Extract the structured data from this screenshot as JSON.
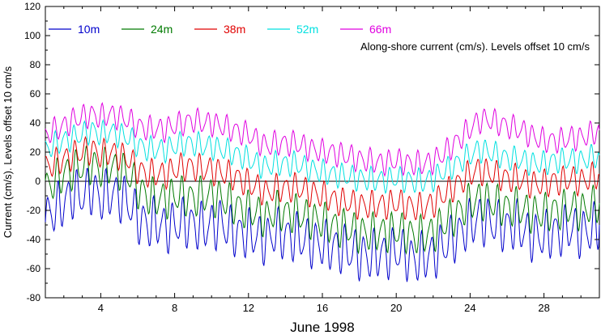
{
  "chart_data": {
    "type": "line",
    "title": "",
    "xlabel": "June 1998",
    "ylabel": "Current (cm/s). Levels offset 10 cm/s",
    "annotation": "Along-shore current (cm/s). Levels offset 10 cm/s",
    "xlim": [
      1,
      31
    ],
    "ylim": [
      -80,
      120
    ],
    "x_ticks": [
      4,
      8,
      12,
      16,
      20,
      24,
      28
    ],
    "y_ticks": [
      -80,
      -60,
      -40,
      -20,
      0,
      20,
      40,
      60,
      80,
      100,
      120
    ],
    "grid": false,
    "zero_line": true,
    "legend_position": "top",
    "series": [
      {
        "name": "10m",
        "color": "#0000cc",
        "x": [
          1.0,
          1.5,
          2.0,
          2.5,
          3.0,
          3.5,
          4.0,
          4.5,
          5.0,
          5.5,
          6.0,
          6.5,
          7.0,
          7.5,
          8.0,
          8.5,
          9.0,
          9.5,
          10.0,
          10.5,
          11.0,
          11.5,
          12.0,
          12.5,
          13.0,
          13.5,
          14.0,
          14.5,
          15.0,
          15.5,
          16.0,
          16.5,
          17.0,
          17.5,
          18.0,
          18.5,
          19.0,
          19.5,
          20.0,
          20.5,
          21.0,
          21.5,
          22.0,
          22.5,
          23.0,
          23.5,
          24.0,
          24.5,
          25.0,
          25.5,
          26.0,
          26.5,
          27.0,
          27.5,
          28.0,
          28.5,
          29.0,
          29.5,
          30.0,
          30.5,
          31.0
        ],
        "values": [
          -25,
          -20,
          -15,
          -8,
          -10,
          -5,
          -12,
          -8,
          -10,
          -15,
          -25,
          -30,
          -28,
          -32,
          -30,
          -28,
          -30,
          -32,
          -30,
          -28,
          -34,
          -36,
          -36,
          -38,
          -40,
          -35,
          -38,
          -38,
          -40,
          -42,
          -44,
          -45,
          -46,
          -48,
          -50,
          -52,
          -50,
          -50,
          -48,
          -50,
          -54,
          -52,
          -50,
          -45,
          -40,
          -35,
          -30,
          -25,
          -28,
          -30,
          -32,
          -30,
          -35,
          -38,
          -38,
          -35,
          -35,
          -32,
          -35,
          -34,
          -30
        ]
      },
      {
        "name": "24m",
        "color": "#007a00",
        "x": [
          1.0,
          1.5,
          2.0,
          2.5,
          3.0,
          3.5,
          4.0,
          4.5,
          5.0,
          5.5,
          6.0,
          6.5,
          7.0,
          7.5,
          8.0,
          8.5,
          9.0,
          9.5,
          10.0,
          10.5,
          11.0,
          11.5,
          12.0,
          12.5,
          13.0,
          13.5,
          14.0,
          14.5,
          15.0,
          15.5,
          16.0,
          16.5,
          17.0,
          17.5,
          18.0,
          18.5,
          19.0,
          19.5,
          20.0,
          20.5,
          21.0,
          21.5,
          22.0,
          22.5,
          23.0,
          23.5,
          24.0,
          24.5,
          25.0,
          25.5,
          26.0,
          26.5,
          27.0,
          27.5,
          28.0,
          28.5,
          29.0,
          29.5,
          30.0,
          30.5,
          31.0
        ],
        "values": [
          -5,
          0,
          5,
          8,
          10,
          12,
          8,
          10,
          8,
          5,
          -5,
          -10,
          -12,
          -12,
          -10,
          -10,
          -12,
          -10,
          -10,
          -12,
          -15,
          -18,
          -20,
          -22,
          -25,
          -20,
          -22,
          -22,
          -24,
          -26,
          -28,
          -30,
          -32,
          -33,
          -35,
          -36,
          -35,
          -35,
          -34,
          -35,
          -38,
          -37,
          -35,
          -30,
          -25,
          -20,
          -15,
          -12,
          -14,
          -16,
          -18,
          -18,
          -20,
          -22,
          -22,
          -20,
          -20,
          -18,
          -20,
          -18,
          -15
        ]
      },
      {
        "name": "38m",
        "color": "#e00000",
        "x": [
          1.0,
          1.5,
          2.0,
          2.5,
          3.0,
          3.5,
          4.0,
          4.5,
          5.0,
          5.5,
          6.0,
          6.5,
          7.0,
          7.5,
          8.0,
          8.5,
          9.0,
          9.5,
          10.0,
          10.5,
          11.0,
          11.5,
          12.0,
          12.5,
          13.0,
          13.5,
          14.0,
          14.5,
          15.0,
          15.5,
          16.0,
          16.5,
          17.0,
          17.5,
          18.0,
          18.5,
          19.0,
          19.5,
          20.0,
          20.5,
          21.0,
          21.5,
          22.0,
          22.5,
          23.0,
          23.5,
          24.0,
          24.5,
          25.0,
          25.5,
          26.0,
          26.5,
          27.0,
          27.5,
          28.0,
          28.5,
          29.0,
          29.5,
          30.0,
          30.5,
          31.0
        ],
        "values": [
          10,
          12,
          15,
          18,
          20,
          22,
          18,
          20,
          18,
          15,
          8,
          5,
          5,
          5,
          8,
          10,
          10,
          8,
          8,
          6,
          4,
          2,
          -2,
          -4,
          -8,
          -5,
          -5,
          -4,
          -6,
          -8,
          -10,
          -12,
          -14,
          -15,
          -16,
          -17,
          -16,
          -16,
          -15,
          -16,
          -18,
          -18,
          -15,
          -10,
          -5,
          0,
          5,
          8,
          6,
          4,
          2,
          2,
          0,
          -2,
          -2,
          0,
          0,
          2,
          0,
          2,
          5
        ]
      },
      {
        "name": "52m",
        "color": "#00e0e0",
        "x": [
          1.0,
          1.5,
          2.0,
          2.5,
          3.0,
          3.5,
          4.0,
          4.5,
          5.0,
          5.5,
          6.0,
          6.5,
          7.0,
          7.5,
          8.0,
          8.5,
          9.0,
          9.5,
          10.0,
          10.5,
          11.0,
          11.5,
          12.0,
          12.5,
          13.0,
          13.5,
          14.0,
          14.5,
          15.0,
          15.5,
          16.0,
          16.5,
          17.0,
          17.5,
          18.0,
          18.5,
          19.0,
          19.5,
          20.0,
          20.5,
          21.0,
          21.5,
          22.0,
          22.5,
          23.0,
          23.5,
          24.0,
          24.5,
          25.0,
          25.5,
          26.0,
          26.5,
          27.0,
          27.5,
          28.0,
          28.5,
          29.0,
          29.5,
          30.0,
          30.5,
          31.0
        ],
        "values": [
          22,
          25,
          28,
          30,
          32,
          35,
          32,
          34,
          32,
          30,
          25,
          22,
          22,
          22,
          24,
          26,
          26,
          24,
          24,
          22,
          20,
          18,
          15,
          12,
          10,
          12,
          12,
          12,
          10,
          8,
          6,
          5,
          4,
          3,
          2,
          1,
          1,
          1,
          2,
          1,
          0,
          0,
          2,
          6,
          10,
          14,
          18,
          22,
          20,
          18,
          16,
          15,
          14,
          12,
          12,
          14,
          14,
          15,
          14,
          16,
          18
        ]
      },
      {
        "name": "66m",
        "color": "#e000e0",
        "x": [
          1.0,
          1.5,
          2.0,
          2.5,
          3.0,
          3.5,
          4.0,
          4.5,
          5.0,
          5.5,
          6.0,
          6.5,
          7.0,
          7.5,
          8.0,
          8.5,
          9.0,
          9.5,
          10.0,
          10.5,
          11.0,
          11.5,
          12.0,
          12.5,
          13.0,
          13.5,
          14.0,
          14.5,
          15.0,
          15.5,
          16.0,
          16.5,
          17.0,
          17.5,
          18.0,
          18.5,
          19.0,
          19.5,
          20.0,
          20.5,
          21.0,
          21.5,
          22.0,
          22.5,
          23.0,
          23.5,
          24.0,
          24.5,
          25.0,
          25.5,
          26.0,
          26.5,
          27.0,
          27.5,
          28.0,
          28.5,
          29.0,
          29.5,
          30.0,
          30.5,
          31.0
        ],
        "values": [
          32,
          35,
          38,
          42,
          44,
          46,
          44,
          46,
          44,
          42,
          38,
          36,
          36,
          36,
          38,
          40,
          42,
          40,
          40,
          38,
          36,
          34,
          32,
          28,
          24,
          26,
          26,
          26,
          24,
          22,
          20,
          20,
          18,
          17,
          15,
          14,
          13,
          13,
          14,
          13,
          12,
          12,
          14,
          18,
          24,
          30,
          36,
          42,
          42,
          40,
          38,
          36,
          34,
          30,
          28,
          28,
          28,
          30,
          30,
          32,
          35
        ]
      }
    ]
  }
}
